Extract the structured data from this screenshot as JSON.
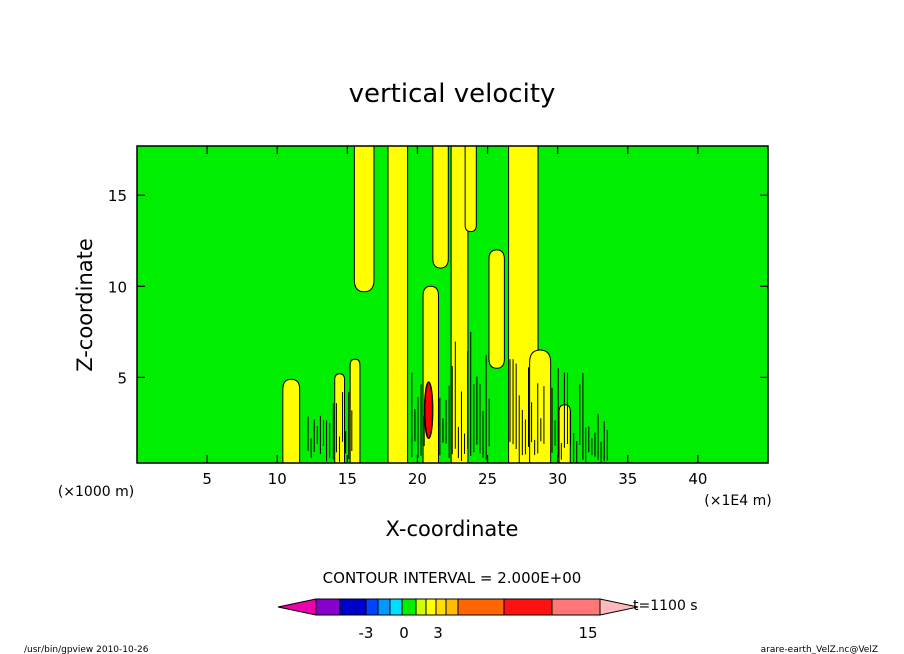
{
  "chart_data": {
    "type": "contour",
    "title": "vertical velocity",
    "xlabel": "X-coordinate",
    "ylabel": "Z-coordinate",
    "x_unit_left": "(×1000 m)",
    "x_unit_right": "(×1E4 m)",
    "xlim": [
      0,
      45
    ],
    "ylim": [
      0.3,
      17.7
    ],
    "x_ticks": [
      5,
      10,
      15,
      20,
      25,
      30,
      35,
      40
    ],
    "y_ticks": [
      5,
      10,
      15
    ],
    "contour_interval_label": "CONTOUR INTERVAL = 2.000E+00",
    "time_label": "t=1100 s",
    "colorbar_labels": [
      "-3",
      "0",
      "3",
      "15"
    ],
    "background_level_color": "#00ee00",
    "colors": {
      "green": "#00ee00",
      "yellow": "#ffff00",
      "dark": "#000000",
      "red": "#ff0000"
    },
    "colorbar_colors": [
      "#ee00aa",
      "#8800cc",
      "#0000cc",
      "#0044ff",
      "#0099ff",
      "#00ddff",
      "#00ee00",
      "#ccff00",
      "#ffff00",
      "#ffdd00",
      "#ffbb00",
      "#ff6600",
      "#ff1111",
      "#ff7777",
      "#ffbbbb"
    ],
    "yellow_regions": [
      {
        "x": [
          10.4,
          11.6
        ],
        "z": [
          0.3,
          4.9
        ]
      },
      {
        "x": [
          14.1,
          14.8
        ],
        "z": [
          0.3,
          5.2
        ]
      },
      {
        "x": [
          15.2,
          15.9
        ],
        "z": [
          0.3,
          6.0
        ]
      },
      {
        "x": [
          15.5,
          16.9
        ],
        "z": [
          9.7,
          17.7
        ]
      },
      {
        "x": [
          17.9,
          19.3
        ],
        "z": [
          0.3,
          17.7
        ]
      },
      {
        "x": [
          20.4,
          21.5
        ],
        "z": [
          0.3,
          10.0
        ]
      },
      {
        "x": [
          21.1,
          22.2
        ],
        "z": [
          11.0,
          17.7
        ]
      },
      {
        "x": [
          22.4,
          23.6
        ],
        "z": [
          0.3,
          17.7
        ]
      },
      {
        "x": [
          23.4,
          24.2
        ],
        "z": [
          13.0,
          17.7
        ]
      },
      {
        "x": [
          25.1,
          26.2
        ],
        "z": [
          5.5,
          12.0
        ]
      },
      {
        "x": [
          26.5,
          28.6
        ],
        "z": [
          0.3,
          17.7
        ]
      },
      {
        "x": [
          28.0,
          29.5
        ],
        "z": [
          0.3,
          6.5
        ]
      },
      {
        "x": [
          30.1,
          30.9
        ],
        "z": [
          0.3,
          3.5
        ]
      }
    ]
  },
  "footer": {
    "left": "/usr/bin/gpview   2010-10-26",
    "right": "arare-earth_VelZ.nc@VelZ"
  }
}
